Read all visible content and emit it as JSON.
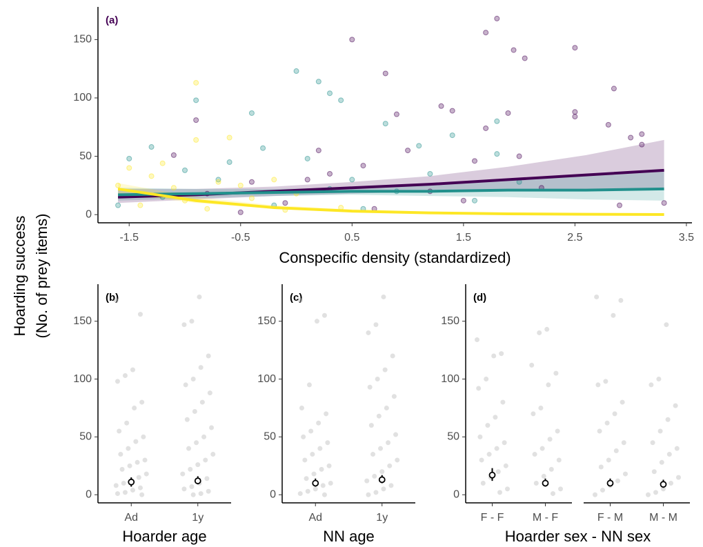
{
  "chart_data": [
    {
      "type": "scatter",
      "panel_label": "(a)",
      "panel_label_color": "#440154",
      "ylabel": [
        "Hoarding success",
        "(No. of prey items)"
      ],
      "xlabel": "Conspecific density (standardized)",
      "xlim": [
        -1.78,
        3.55
      ],
      "ylim": [
        -7,
        178
      ],
      "xticks": [
        -1.5,
        -0.5,
        0.5,
        1.5,
        2.5,
        3.5
      ],
      "yticks": [
        0,
        50,
        100,
        150
      ],
      "fit_x": [
        -1.6,
        -0.9,
        -0.2,
        0.5,
        1.2,
        1.9,
        2.6,
        3.3
      ],
      "series": [
        {
          "color": "#440154",
          "x": [
            1.8,
            1.7,
            0.5,
            1.95,
            2.05,
            2.5,
            2.85,
            2.5,
            2.5,
            3.1,
            3.0,
            3.1,
            2.8,
            1.4,
            1.3,
            0.8,
            0.9,
            1.9,
            1.7,
            -0.9,
            1.0,
            1.6,
            2.0,
            0.6,
            0.3,
            -0.4,
            -1.1,
            0.2,
            -0.1,
            1.2,
            2.2,
            3.3,
            2.9,
            0.7,
            -0.5,
            1.5,
            0.1,
            -0.8
          ],
          "y": [
            168,
            156,
            150,
            141,
            134,
            143,
            108,
            88,
            84,
            69,
            66,
            60,
            77,
            89,
            93,
            121,
            86,
            87,
            74,
            81,
            55,
            46,
            50,
            42,
            35,
            28,
            51,
            55,
            10,
            20,
            23,
            10,
            8,
            5,
            2,
            12,
            30,
            18
          ],
          "fit_y": [
            15,
            17,
            20,
            23,
            26,
            30,
            34,
            38
          ],
          "fit_low": [
            10,
            13,
            16,
            18,
            20,
            21,
            22,
            23
          ],
          "fit_high": [
            22,
            22,
            24,
            28,
            33,
            41,
            51,
            64
          ]
        },
        {
          "color": "#21908c",
          "x": [
            0.0,
            0.3,
            -0.9,
            0.4,
            -0.4,
            0.2,
            0.8,
            1.8,
            1.4,
            -0.6,
            -1.3,
            -0.3,
            0.1,
            1.1,
            1.8,
            -1.5,
            -1.0,
            -0.7,
            0.5,
            1.2,
            2.0,
            0.9,
            -1.2,
            -0.2,
            0.6,
            1.6,
            -1.6,
            0.3
          ],
          "y": [
            123,
            104,
            98,
            98,
            87,
            114,
            78,
            80,
            68,
            45,
            58,
            57,
            48,
            59,
            52,
            48,
            38,
            30,
            30,
            35,
            28,
            20,
            15,
            8,
            5,
            12,
            8,
            22
          ],
          "fit_y": [
            17,
            18,
            19,
            20,
            20,
            21,
            21,
            22
          ],
          "fit_low": [
            12,
            14,
            16,
            17,
            16,
            15,
            13,
            12
          ],
          "fit_high": [
            23,
            22,
            22,
            23,
            25,
            29,
            33,
            39
          ]
        },
        {
          "color": "#fde725",
          "x": [
            -0.9,
            -0.9,
            -0.6,
            -1.5,
            -1.2,
            -1.1,
            -1.3,
            -0.5,
            -0.2,
            -1.0,
            -0.8,
            -1.4,
            -0.4,
            -0.1,
            0.4,
            -1.6,
            0.0,
            -0.7
          ],
          "y": [
            113,
            64,
            66,
            40,
            44,
            23,
            33,
            25,
            30,
            12,
            5,
            8,
            14,
            4,
            6,
            25,
            18,
            28
          ],
          "fit_y": [
            22,
            12,
            6,
            3,
            1.5,
            0.7,
            0.3,
            0.1
          ],
          "fit_low": [
            18,
            10,
            5,
            2,
            1,
            0.4,
            0.1,
            0
          ],
          "fit_high": [
            27,
            15,
            8,
            4.5,
            2.5,
            1.5,
            1,
            0.5
          ]
        }
      ]
    },
    {
      "type": "strip",
      "panel_label": "(b)",
      "xlabel": "Hoarder age",
      "categories": [
        "Ad",
        "1y"
      ],
      "ylim": [
        -7,
        182
      ],
      "yticks": [
        0,
        50,
        100,
        150
      ],
      "points": [
        [
          168,
          156,
          108,
          103,
          98,
          80,
          75,
          62,
          55,
          50,
          46,
          40,
          35,
          30,
          28,
          25,
          22,
          18,
          15,
          12,
          10,
          8,
          6,
          4,
          2,
          1,
          0
        ],
        [
          171,
          150,
          147,
          120,
          110,
          100,
          95,
          88,
          80,
          72,
          65,
          58,
          50,
          45,
          40,
          35,
          30,
          26,
          22,
          18,
          14,
          10,
          7,
          5,
          3,
          1,
          0
        ]
      ],
      "means": [
        11,
        12
      ],
      "ci_low": [
        7,
        9
      ],
      "ci_high": [
        15,
        16
      ]
    },
    {
      "type": "strip",
      "panel_label": "(c)",
      "xlabel": "NN age",
      "categories": [
        "Ad",
        "1y"
      ],
      "ylim": [
        -7,
        182
      ],
      "yticks": [
        0,
        50,
        100,
        150
      ],
      "points": [
        [
          168,
          155,
          150,
          95,
          75,
          70,
          62,
          55,
          50,
          45,
          40,
          35,
          30,
          25,
          22,
          18,
          14,
          10,
          8,
          5,
          3,
          1,
          0
        ],
        [
          171,
          147,
          140,
          120,
          108,
          100,
          93,
          85,
          75,
          68,
          60,
          52,
          45,
          40,
          35,
          30,
          25,
          20,
          16,
          12,
          8,
          5,
          2,
          0
        ]
      ],
      "means": [
        10,
        13
      ],
      "ci_low": [
        7,
        10
      ],
      "ci_high": [
        14,
        17
      ]
    },
    {
      "type": "strip",
      "panel_label": "(d)",
      "xlabel": "Hoarder sex - NN sex",
      "categories": [
        "F - F",
        "M - F",
        "F - M",
        "M - M"
      ],
      "ylim": [
        -7,
        182
      ],
      "yticks": [
        0,
        50,
        100,
        150
      ],
      "points": [
        [
          134,
          122,
          120,
          100,
          92,
          80,
          67,
          60,
          50,
          45,
          40,
          35,
          30,
          25,
          20,
          15,
          10,
          5,
          2
        ],
        [
          143,
          140,
          112,
          105,
          95,
          75,
          70,
          55,
          48,
          40,
          35,
          30,
          22,
          16,
          10,
          5,
          1
        ],
        [
          171,
          168,
          155,
          98,
          95,
          80,
          70,
          62,
          55,
          45,
          38,
          30,
          24,
          18,
          12,
          8,
          4,
          0
        ],
        [
          147,
          100,
          95,
          77,
          65,
          55,
          45,
          40,
          35,
          28,
          20,
          15,
          10,
          5,
          2,
          0
        ]
      ],
      "means": [
        17,
        10,
        10,
        9
      ],
      "ci_low": [
        12,
        7,
        7,
        6
      ],
      "ci_high": [
        23,
        14,
        14,
        13
      ]
    }
  ]
}
